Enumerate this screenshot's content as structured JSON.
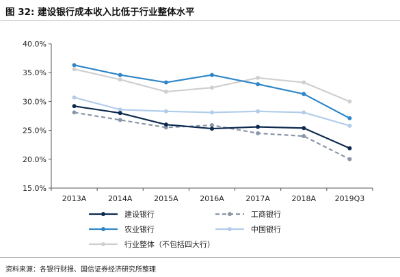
{
  "figure": {
    "title": "图 32:  建设银行成本收入比低于行业整体水平",
    "source": "资料来源：各银行财报、国信证券经济研究所整理"
  },
  "chart_data": {
    "type": "line",
    "categories": [
      "2013A",
      "2014A",
      "2015A",
      "2016A",
      "2017A",
      "2018A",
      "2019Q3"
    ],
    "ylim": [
      15,
      40
    ],
    "yticks": [
      15,
      20,
      25,
      30,
      35,
      40
    ],
    "ytick_labels": [
      "15.0%",
      "20.0%",
      "25.0%",
      "30.0%",
      "35.0%",
      "40.0%"
    ],
    "grid": false,
    "legend_position": "bottom",
    "series": [
      {
        "name": "建设银行",
        "values": [
          29.2,
          28.0,
          26.0,
          25.3,
          25.6,
          25.4,
          21.9
        ],
        "color": "#0d2a4e",
        "dashed": false
      },
      {
        "name": "工商银行",
        "values": [
          28.1,
          26.8,
          25.5,
          25.9,
          24.5,
          24.0,
          20.0
        ],
        "color": "#8a96a8",
        "dashed": true
      },
      {
        "name": "农业银行",
        "values": [
          36.3,
          34.6,
          33.3,
          34.6,
          33.0,
          31.3,
          27.1
        ],
        "color": "#2e86c8",
        "dashed": false
      },
      {
        "name": "中国银行",
        "values": [
          30.7,
          28.6,
          28.3,
          28.1,
          28.3,
          28.1,
          25.8
        ],
        "color": "#b2cdea",
        "dashed": false
      },
      {
        "name": "行业整体（不包括四大行）",
        "values": [
          35.6,
          33.8,
          31.7,
          32.4,
          34.1,
          33.3,
          30.0
        ],
        "color": "#cfcfcf",
        "dashed": false
      }
    ]
  }
}
